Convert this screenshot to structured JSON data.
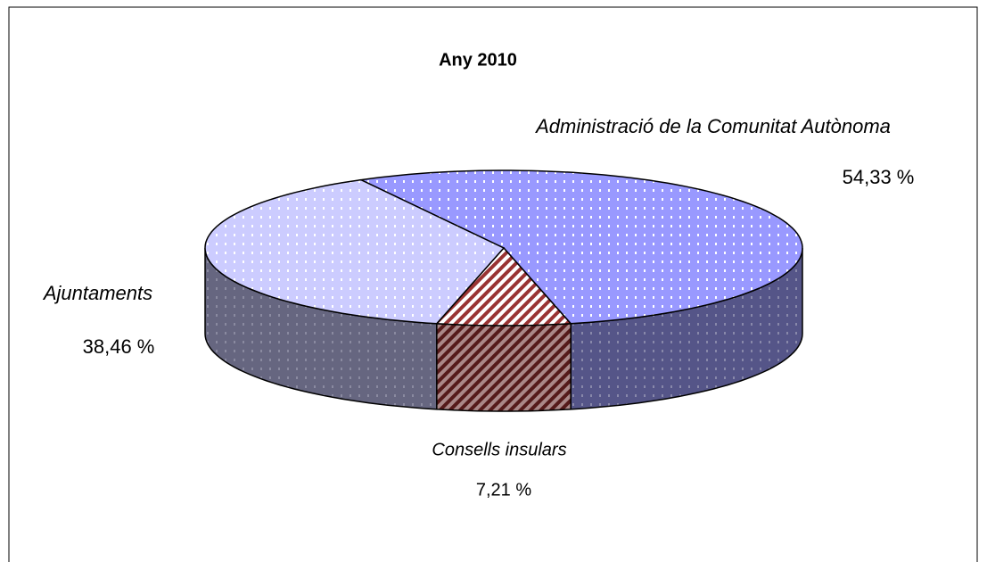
{
  "chart_data": {
    "type": "pie3d",
    "title": "Any 2010",
    "categories": [
      "Administració de la Comunitat Autònoma",
      "Consells insulars",
      "Ajuntaments"
    ],
    "values": [
      54.33,
      7.21,
      38.46
    ],
    "value_labels": [
      "54,33 %",
      "7,21 %",
      "38,46 %"
    ],
    "colors": [
      "#9999ff",
      "#993333",
      "#ccccff"
    ]
  }
}
